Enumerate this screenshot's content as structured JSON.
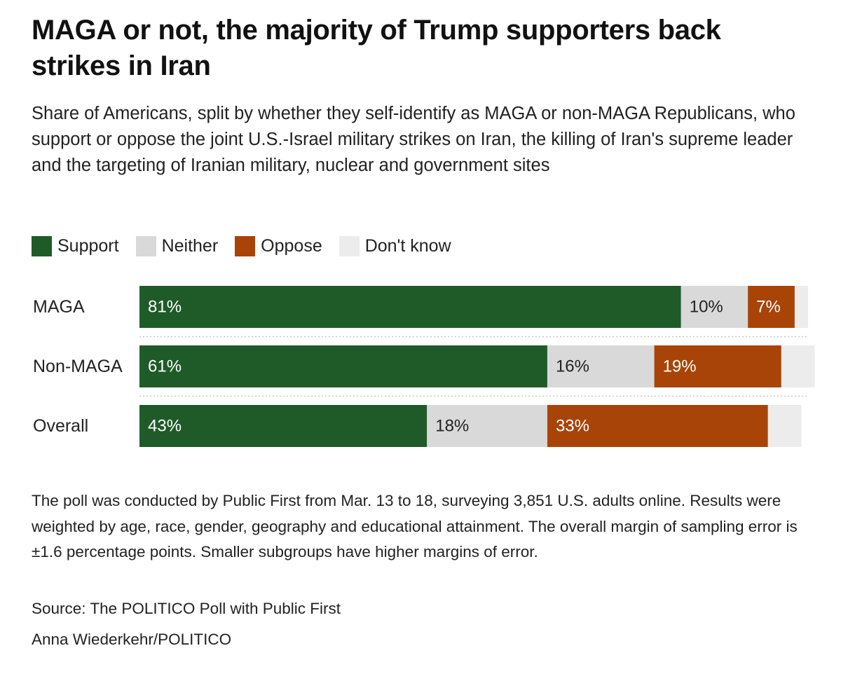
{
  "title": "MAGA or not, the majority of Trump supporters back strikes in Iran",
  "subtitle": "Share of Americans, split by whether they self-identify as MAGA or non-MAGA Republicans, who support or oppose the joint U.S.-Israel military strikes on Iran, the killing of Iran's supreme leader and the targeting of Iranian military, nuclear and government sites",
  "legend": [
    {
      "label": "Support",
      "color": "#1f5a29"
    },
    {
      "label": "Neither",
      "color": "#d9d9d9"
    },
    {
      "label": "Oppose",
      "color": "#a84408"
    },
    {
      "label": "Don't know",
      "color": "#ececec"
    }
  ],
  "chart_data": {
    "type": "bar",
    "orientation": "horizontal",
    "stacked": true,
    "unit": "percent",
    "categories": [
      "MAGA",
      "Non-MAGA",
      "Overall"
    ],
    "series": [
      {
        "name": "Support",
        "color": "#1f5a29",
        "label_color": "#ffffff",
        "values": [
          81,
          61,
          43
        ],
        "labels": [
          "81%",
          "61%",
          "43%"
        ]
      },
      {
        "name": "Neither",
        "color": "#d9d9d9",
        "label_color": "#222222",
        "values": [
          10,
          16,
          18
        ],
        "labels": [
          "10%",
          "16%",
          "18%"
        ]
      },
      {
        "name": "Oppose",
        "color": "#a84408",
        "label_color": "#ffffff",
        "values": [
          7,
          19,
          33
        ],
        "labels": [
          "7%",
          "19%",
          "33%"
        ]
      },
      {
        "name": "Don't know",
        "color": "#ececec",
        "label_color": "#222222",
        "values": [
          2,
          5,
          5
        ],
        "labels": [
          "",
          "",
          ""
        ]
      }
    ],
    "xlim": [
      0,
      100
    ]
  },
  "notes": "The poll was conducted by Public First from Mar. 13 to 18, surveying 3,851 U.S. adults online. Results were weighted by age, race, gender, geography and educational attainment. The overall margin of sampling error is ±1.6 percentage points. Smaller subgroups have higher margins of error.",
  "source": "Source: The POLITICO Poll with Public First",
  "credit": "Anna Wiederkehr/POLITICO"
}
